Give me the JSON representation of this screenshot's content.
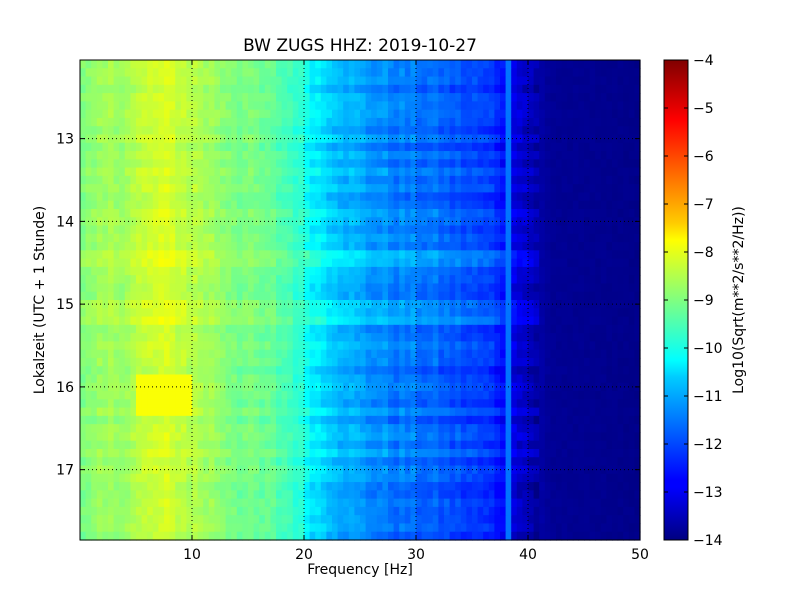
{
  "chart_data": {
    "type": "heatmap",
    "title": "BW ZUGS HHZ: 2019-10-27",
    "xlabel": "Frequency [Hz]",
    "ylabel": "Lokalzeit (UTC + 1 Stunde)",
    "xlim": [
      0,
      50
    ],
    "ylim": [
      17.85,
      12.05
    ],
    "xticks": [
      10,
      20,
      30,
      40,
      50
    ],
    "xtick_labels": [
      "10",
      "20",
      "30",
      "40",
      "50"
    ],
    "yticks": [
      13,
      14,
      15,
      16,
      17
    ],
    "ytick_labels": [
      "13",
      "14",
      "15",
      "16",
      "17"
    ],
    "grid": true,
    "colormap": "jet",
    "colorbar": {
      "label": "Log10(Sqrt(m**2/s**2/Hz))",
      "range": [
        -14,
        -4
      ],
      "ticks": [
        -4,
        -5,
        -6,
        -7,
        -8,
        -9,
        -10,
        -11,
        -12,
        -13,
        -14
      ],
      "tick_labels": [
        "−4",
        "−5",
        "−6",
        "−7",
        "−8",
        "−9",
        "−10",
        "−11",
        "−12",
        "−13",
        "−14"
      ]
    },
    "spectrum_profile": {
      "frequency_hz": [
        0,
        2,
        5,
        7,
        9,
        11,
        14,
        17,
        19,
        21,
        23,
        25,
        28,
        31,
        34,
        37,
        38.5,
        40,
        42,
        50
      ],
      "level": [
        -9.1,
        -8.8,
        -8.5,
        -8.2,
        -8.3,
        -8.6,
        -9.0,
        -9.3,
        -9.6,
        -10.4,
        -10.8,
        -11.2,
        -11.5,
        -11.7,
        -12.0,
        -12.3,
        -12.8,
        -13.4,
        -13.8,
        -13.9
      ]
    },
    "features": {
      "line_frequency_hz": 38.3,
      "line_level": -11.6,
      "lf_enhancement_start": 15.9,
      "lf_enhancement_end": 16.4,
      "lf_enhancement_level": -7.8
    }
  }
}
